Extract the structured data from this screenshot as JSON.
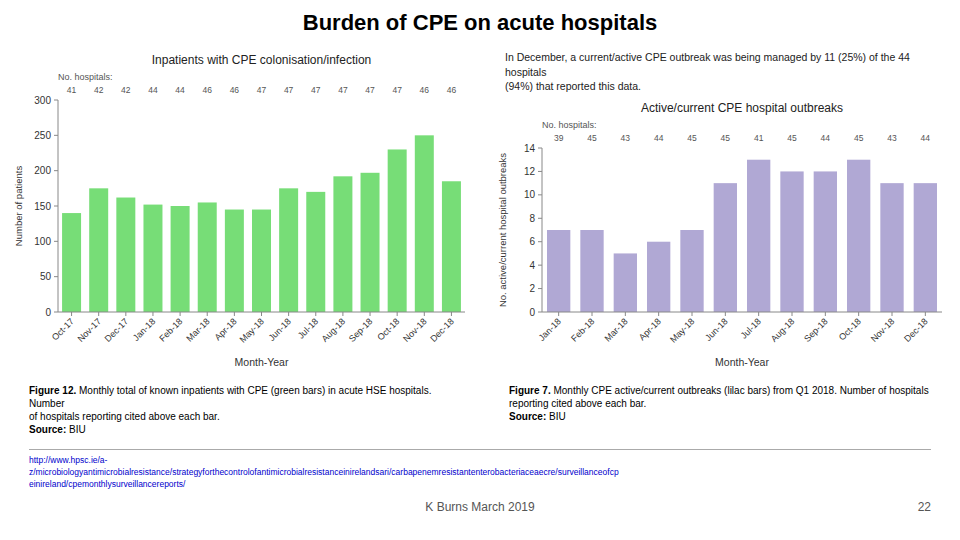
{
  "title": "Burden of CPE on acute hospitals",
  "text": "In December, a current/active CPE outbreak was being managed by 11 (25%) of the 44 hospitals\n(94%) that reported this data.",
  "chart_data": [
    {
      "type": "bar",
      "title": "Inpatients with CPE colonisation/infection",
      "xlabel": "Month-Year",
      "ylabel": "Number of patients",
      "categories": [
        "Oct-17",
        "Nov-17",
        "Dec-17",
        "Jan-18",
        "Feb-18",
        "Mar-18",
        "Apr-18",
        "May-18",
        "Jun-18",
        "Jul-18",
        "Aug-18",
        "Sep-18",
        "Oct-18",
        "Nov-18",
        "Dec-18"
      ],
      "values": [
        140,
        175,
        162,
        152,
        150,
        155,
        145,
        145,
        175,
        170,
        192,
        197,
        230,
        250,
        185
      ],
      "color": "#77dd77",
      "ylim": [
        0,
        300
      ],
      "yticks": [
        0,
        50,
        100,
        150,
        200,
        250,
        300
      ],
      "grid": false,
      "annotations": {
        "title": "No. hospitals:",
        "labels": [
          "41",
          "42",
          "42",
          "44",
          "44",
          "46",
          "46",
          "47",
          "47",
          "47",
          "47",
          "47",
          "47",
          "46",
          "46"
        ]
      },
      "caption": {
        "label": "Figure 12.",
        "text": "Monthly total of known inpatients with CPE (green bars) in acute HSE hospitals. Number\nof hospitals reporting cited above each bar.",
        "source_label": "Source:",
        "source": "BIU"
      }
    },
    {
      "type": "bar",
      "title": "Active/current CPE hospital outbreaks",
      "xlabel": "Month-Year",
      "ylabel": "No. active/current hospital outbreaks",
      "categories": [
        "Jan-18",
        "Feb-18",
        "Mar-18",
        "Apr-18",
        "May-18",
        "Jun-18",
        "Jul-18",
        "Aug-18",
        "Sep-18",
        "Oct-18",
        "Nov-18",
        "Dec-18"
      ],
      "values": [
        7,
        7,
        5,
        6,
        7,
        11,
        13,
        12,
        12,
        13,
        11,
        11
      ],
      "color": "#b0a8d4",
      "ylim": [
        0,
        14
      ],
      "yticks": [
        0,
        2,
        4,
        6,
        8,
        10,
        12,
        14
      ],
      "grid": false,
      "annotations": {
        "title": "No. hospitals:",
        "labels": [
          "39",
          "45",
          "43",
          "44",
          "45",
          "45",
          "41",
          "45",
          "44",
          "45",
          "43",
          "44"
        ]
      },
      "caption": {
        "label": "Figure 7.",
        "text": "Monthly CPE active/current outbreaks (lilac bars) from Q1 2018. Number of hospitals\nreporting cited above each bar.",
        "source_label": "Source:",
        "source": "BIU"
      }
    }
  ],
  "footer": {
    "url": [
      "http://www.hpsc.ie/a-",
      "z/microbiologyantimicrobialresistance/strategyforthecontrolofantimicrobialresistanceinirelandsari/carbapenemresistantenterobacteriaceaecre/surveillanceofcp",
      "einireland/cpemonthlysurveillancereports/"
    ],
    "author": "K Burns March 2019",
    "page": "22"
  }
}
